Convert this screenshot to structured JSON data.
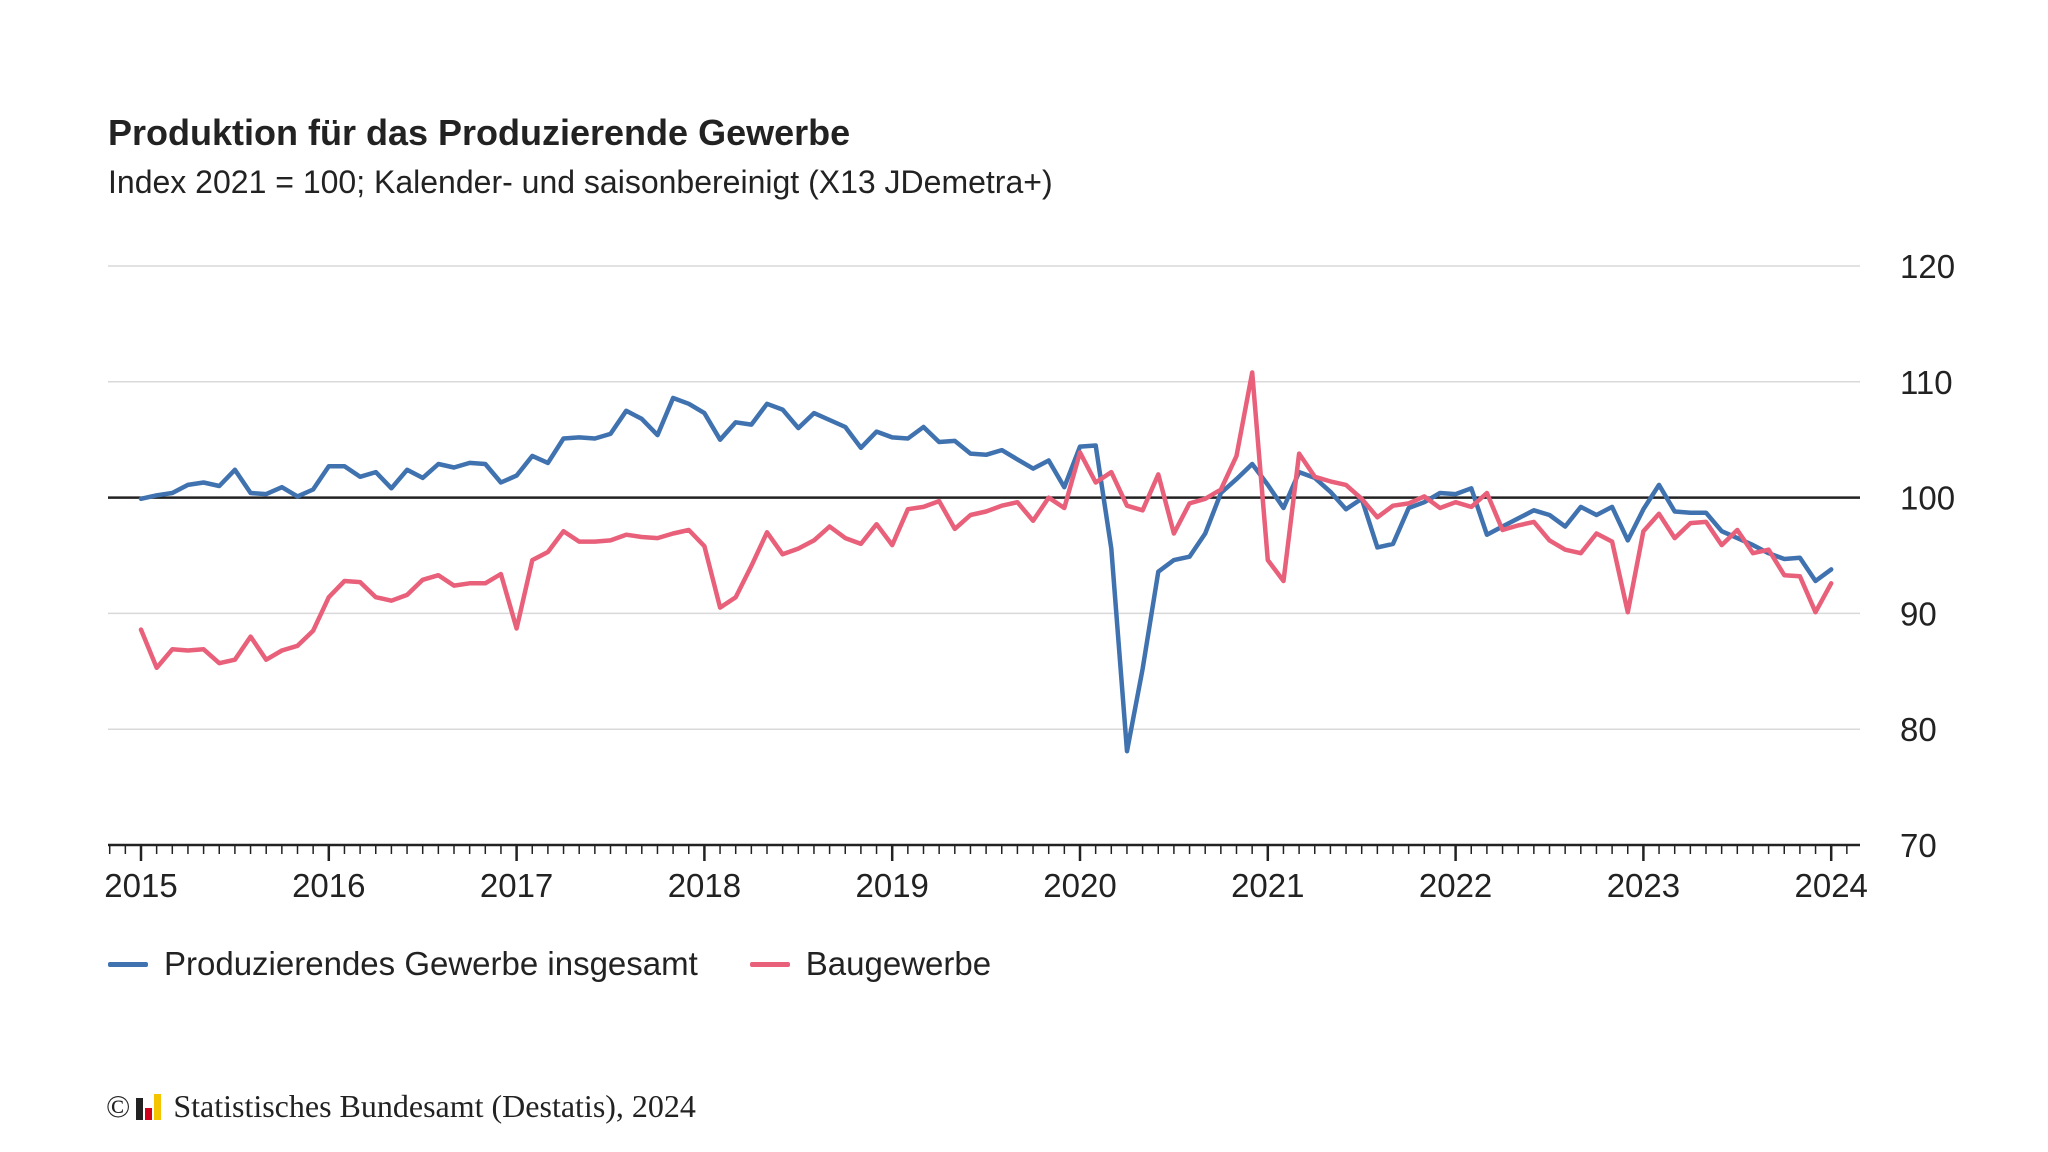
{
  "header": {
    "title": "Produktion für das Produzierende Gewerbe",
    "subtitle": "Index 2021 = 100; Kalender- und saisonbereinigt (X13 JDemetra+)"
  },
  "footer": {
    "copyright_symbol": "©",
    "source": "Statistisches Bundesamt (Destatis), 2024",
    "logo_icon": "destatis-logo-icon",
    "logo_colors": [
      "#222222",
      "#d0021b",
      "#f5c400"
    ]
  },
  "chart_data": {
    "type": "line",
    "title": "Produktion für das Produzierende Gewerbe",
    "subtitle": "Index 2021 = 100; Kalender- und saisonbereinigt (X13 JDemetra+)",
    "x_start": "2015-01",
    "x_tick_labels": [
      "2015",
      "2016",
      "2017",
      "2018",
      "2019",
      "2020",
      "2021",
      "2022",
      "2023",
      "2024"
    ],
    "y_ticks": [
      70,
      80,
      90,
      100,
      110,
      120
    ],
    "ylim": [
      70,
      120
    ],
    "reference_line": 100,
    "grid": true,
    "y_axis_position": "right",
    "legend_position": "bottom-left",
    "series": [
      {
        "name": "Produzierendes Gewerbe insgesamt",
        "color": "#3f72af",
        "values": [
          99.9,
          100.2,
          100.4,
          101.1,
          101.3,
          101.0,
          102.4,
          100.4,
          100.3,
          100.9,
          100.1,
          100.7,
          102.7,
          102.7,
          101.8,
          102.2,
          100.8,
          102.4,
          101.7,
          102.9,
          102.6,
          103.0,
          102.9,
          101.3,
          101.9,
          103.6,
          103.0,
          105.1,
          105.2,
          105.1,
          105.5,
          107.5,
          106.8,
          105.4,
          108.6,
          108.1,
          107.3,
          105.0,
          106.5,
          106.3,
          108.1,
          107.6,
          106.0,
          107.3,
          106.7,
          106.1,
          104.3,
          105.7,
          105.2,
          105.1,
          106.1,
          104.8,
          104.9,
          103.8,
          103.7,
          104.1,
          103.3,
          102.5,
          103.2,
          100.9,
          104.4,
          104.5,
          95.6,
          78.1,
          85.2,
          93.6,
          94.6,
          94.9,
          96.9,
          100.4,
          101.6,
          102.9,
          101.1,
          99.1,
          102.2,
          101.7,
          100.5,
          99.0,
          99.9,
          95.7,
          96.0,
          99.1,
          99.6,
          100.4,
          100.3,
          100.8,
          96.8,
          97.5,
          98.2,
          98.9,
          98.5,
          97.5,
          99.2,
          98.5,
          99.2,
          96.3,
          99.0,
          101.1,
          98.8,
          98.7,
          98.7,
          97.1,
          96.5,
          95.9,
          95.2,
          94.7,
          94.8,
          92.8,
          93.8
        ]
      },
      {
        "name": "Baugewerbe",
        "color": "#e8607a",
        "values": [
          88.6,
          85.3,
          86.9,
          86.8,
          86.9,
          85.7,
          86.0,
          88.0,
          86.0,
          86.8,
          87.2,
          88.5,
          91.4,
          92.8,
          92.7,
          91.4,
          91.1,
          91.6,
          92.9,
          93.3,
          92.4,
          92.6,
          92.6,
          93.4,
          88.7,
          94.6,
          95.3,
          97.1,
          96.2,
          96.2,
          96.3,
          96.8,
          96.6,
          96.5,
          96.9,
          97.2,
          95.8,
          90.5,
          91.4,
          94.1,
          97.0,
          95.1,
          95.6,
          96.3,
          97.5,
          96.5,
          96.0,
          97.7,
          95.9,
          99.0,
          99.2,
          99.7,
          97.3,
          98.5,
          98.8,
          99.3,
          99.6,
          98.0,
          100.0,
          99.1,
          103.9,
          101.3,
          102.2,
          99.3,
          98.9,
          102.0,
          96.9,
          99.5,
          99.9,
          100.7,
          103.6,
          110.8,
          94.6,
          92.8,
          103.8,
          101.8,
          101.4,
          101.1,
          99.9,
          98.3,
          99.3,
          99.5,
          100.1,
          99.1,
          99.6,
          99.2,
          100.4,
          97.2,
          97.6,
          97.9,
          96.3,
          95.5,
          95.2,
          96.9,
          96.2,
          90.1,
          97.1,
          98.6,
          96.5,
          97.8,
          97.9,
          95.9,
          97.2,
          95.2,
          95.5,
          93.3,
          93.2,
          90.1,
          92.6
        ]
      }
    ]
  }
}
